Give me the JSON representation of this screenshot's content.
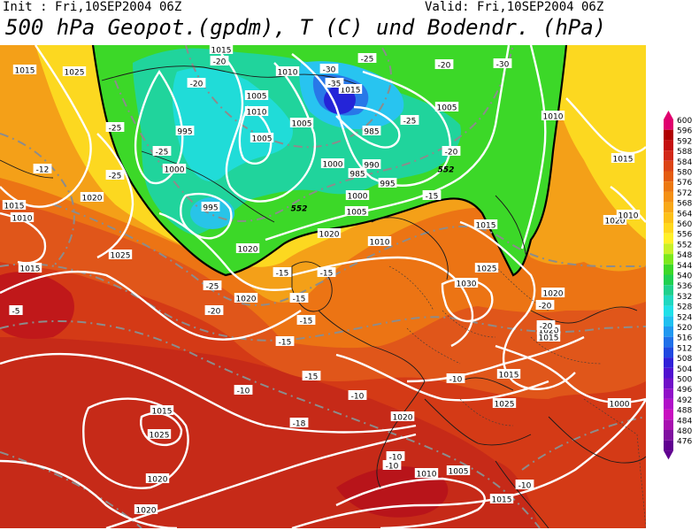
{
  "header": {
    "init": "Init : Fri,10SEP2004 06Z",
    "valid": "Valid: Fri,10SEP2004 06Z",
    "title": "500 hPa Geopot.(gpdm), T (C) und Bodendr. (hPa)"
  },
  "legend": {
    "levels": [
      600,
      596,
      592,
      588,
      584,
      580,
      576,
      572,
      568,
      564,
      560,
      556,
      552,
      548,
      544,
      540,
      536,
      532,
      528,
      524,
      520,
      516,
      512,
      508,
      504,
      500,
      496,
      492,
      488,
      484,
      480,
      476
    ],
    "colors": [
      "#e0006e",
      "#b00000",
      "#c40f0f",
      "#d22818",
      "#dc4416",
      "#e45c10",
      "#ec7810",
      "#f49014",
      "#f8a818",
      "#fcc018",
      "#ffd81c",
      "#fff028",
      "#c8f028",
      "#7ce81c",
      "#3cd828",
      "#20d050",
      "#20d08c",
      "#20d8c0",
      "#20e0e8",
      "#20c0f0",
      "#2098f0",
      "#2070e8",
      "#2048e0",
      "#3020d8",
      "#5010d0",
      "#7010c8",
      "#9010c8",
      "#b010c8",
      "#c810c0",
      "#a810b0",
      "#8010a0",
      "#600090"
    ]
  },
  "map_labels": {
    "pressure": [
      "1015",
      "1025",
      "1015",
      "1010",
      "1020",
      "1015",
      "1025",
      "1015",
      "1005",
      "1010",
      "1005",
      "995",
      "1005",
      "1000",
      "995",
      "985",
      "1010",
      "1015",
      "1005",
      "1000",
      "990",
      "985",
      "995",
      "1000",
      "1005",
      "1010",
      "1020",
      "1015",
      "1025",
      "1030",
      "1020",
      "1015",
      "1020",
      "1025",
      "1010",
      "1015",
      "1020",
      "1020",
      "1020",
      "1025",
      "1020",
      "1020",
      "1015",
      "1020",
      "1005",
      "1010",
      "1015",
      "995",
      "1000",
      "1015",
      "1020",
      "1010"
    ],
    "temperature": [
      "-12",
      "-20",
      "-25",
      "-25",
      "-30",
      "-35",
      "-25",
      "-30",
      "-25",
      "-20",
      "-15",
      "-20",
      "-25",
      "-20",
      "-25",
      "-20",
      "-15",
      "-15",
      "-15",
      "-15",
      "-15",
      "-10",
      "-10",
      "-10",
      "-10",
      "-10",
      "-20",
      "-20",
      "-15",
      "-5",
      "-18",
      "-10"
    ],
    "geopotential": [
      "552",
      "552"
    ]
  },
  "colors": {
    "low_core": "#2424d8",
    "isobar": "#ffffff",
    "isotherm": "#909090",
    "coast": "#000000"
  }
}
